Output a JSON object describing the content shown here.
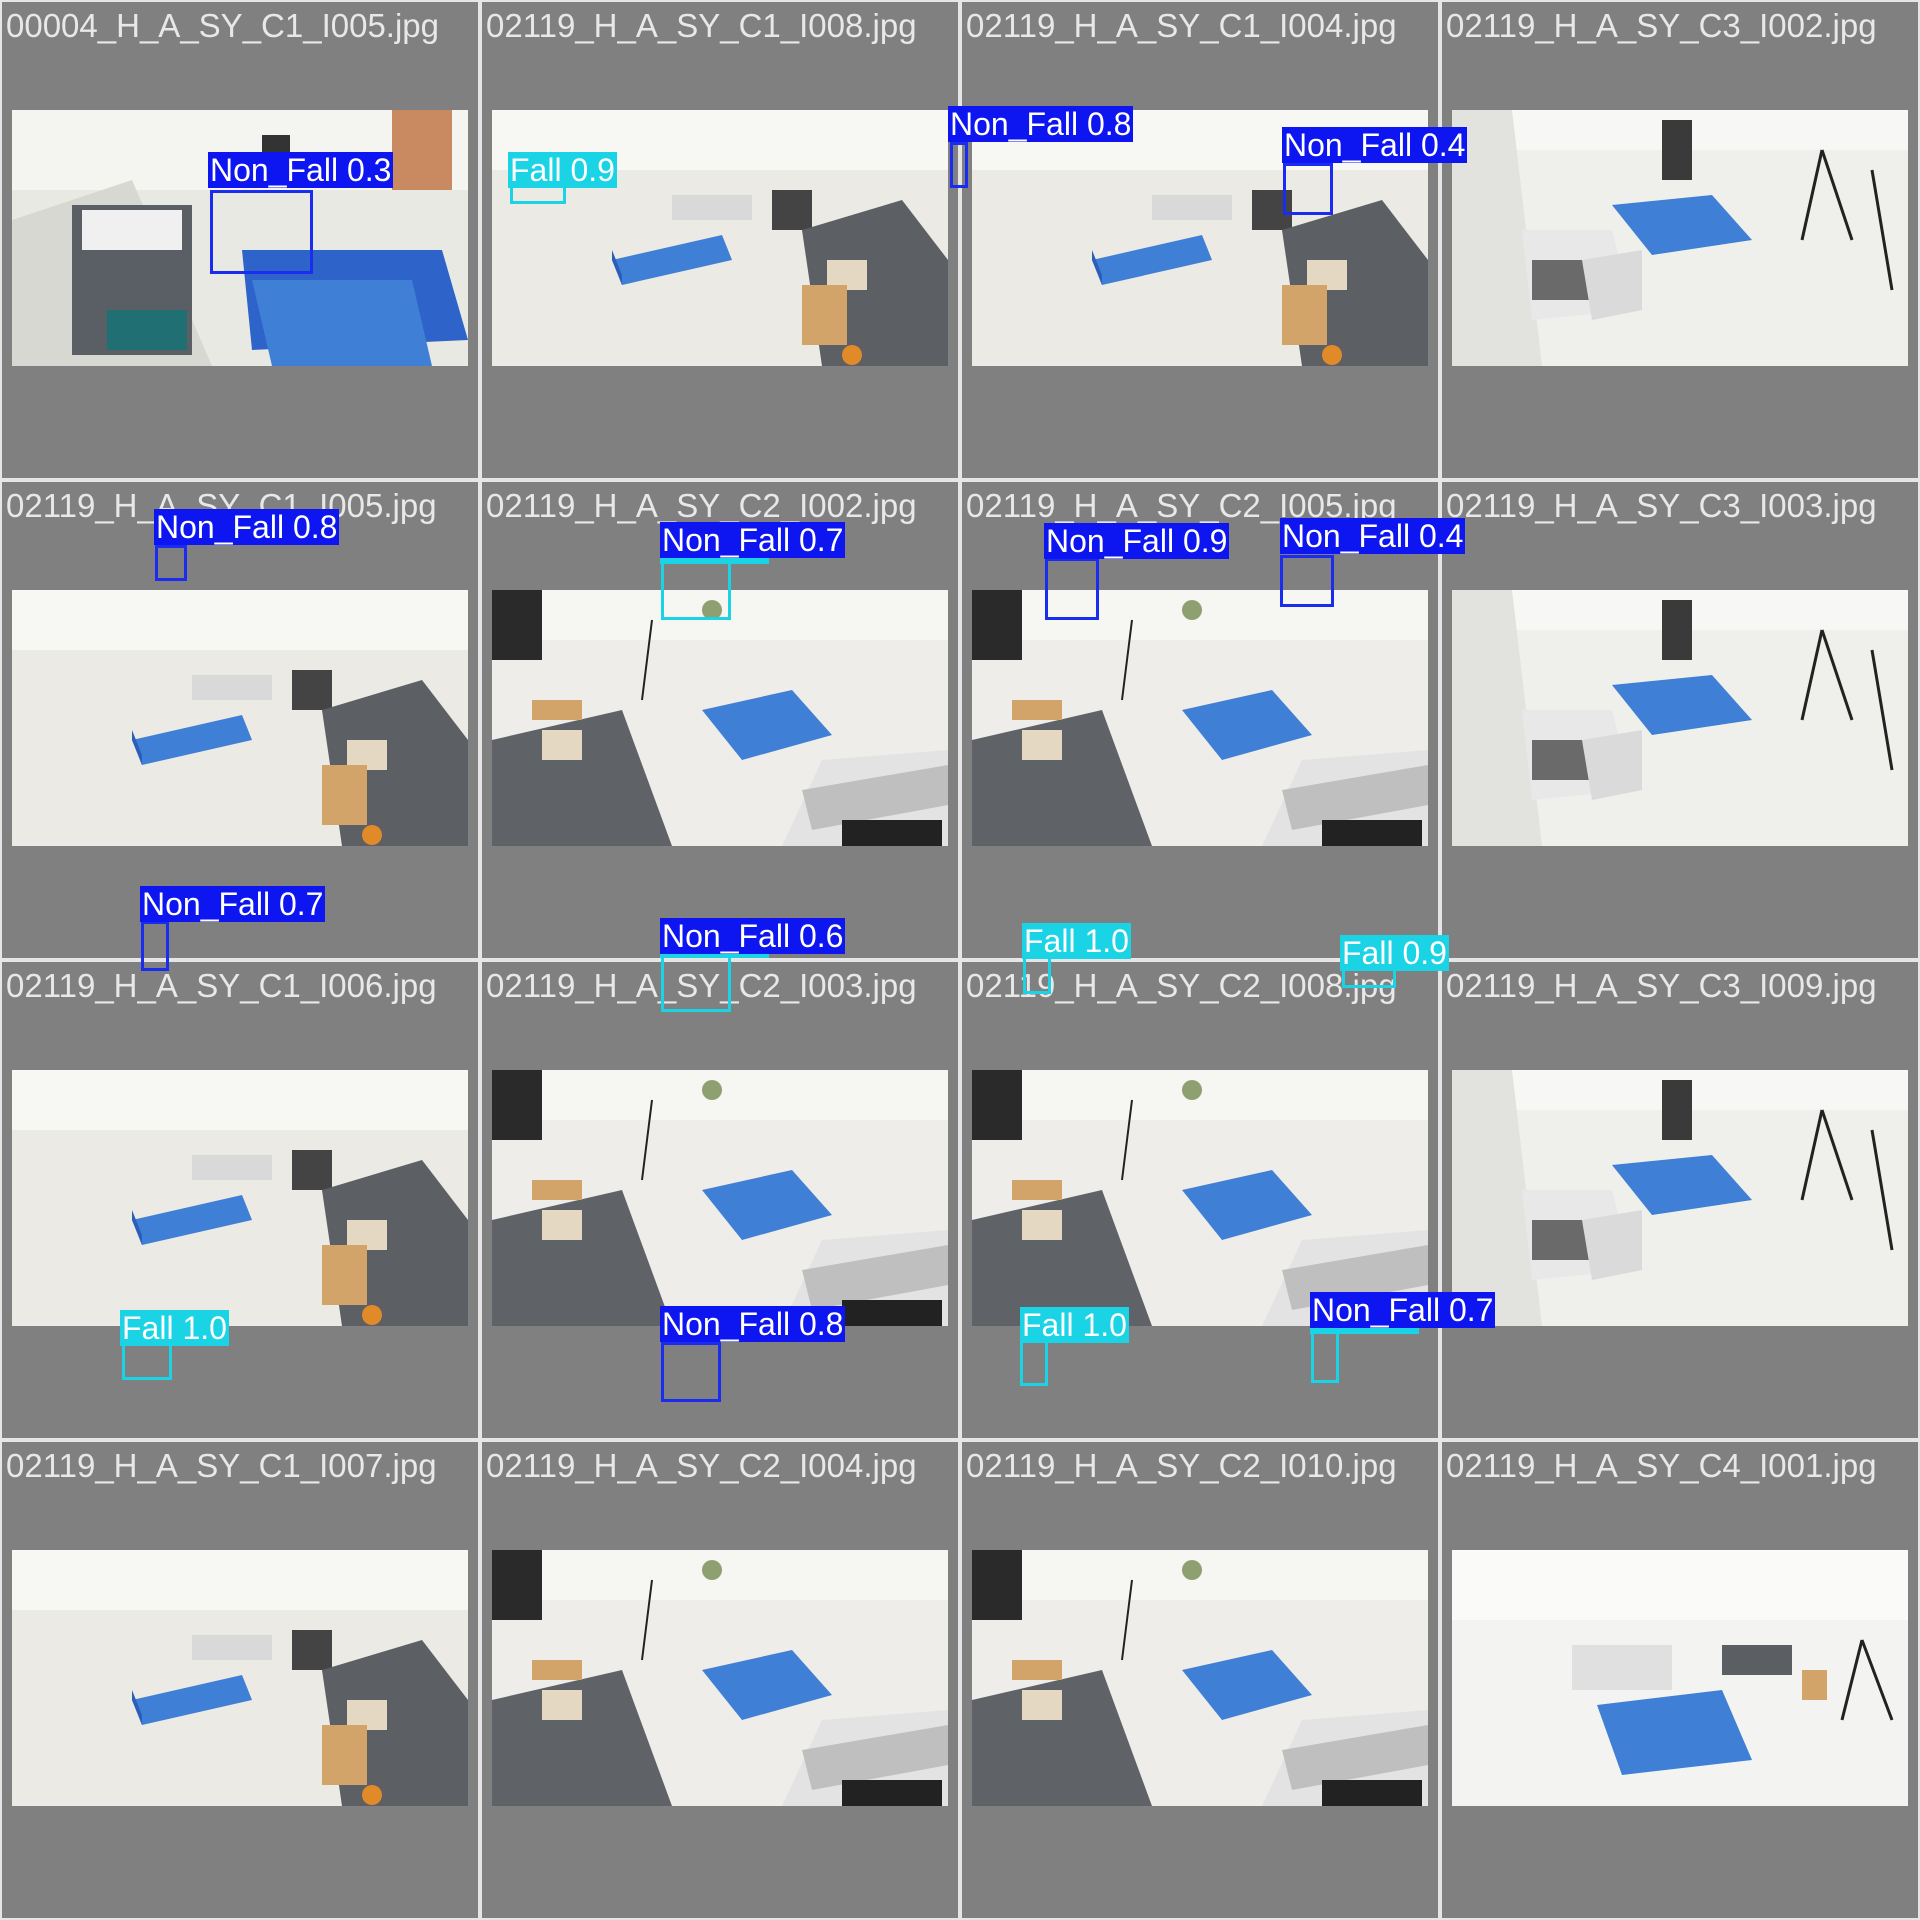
{
  "colors": {
    "tile_bg": "#808080",
    "filename_text": "#e8e8e8",
    "non_fall": "#0d16f0",
    "fall": "#1ad4e6",
    "mat": "#3f7fd6"
  },
  "tiles": [
    {
      "filename": "00004_H_A_SY_C1_I005.jpg",
      "scene": "room_a",
      "detections": [
        {
          "label": "Non_Fall 0.3",
          "class": "nonfall"
        }
      ]
    },
    {
      "filename": "02119_H_A_SY_C1_I008.jpg",
      "scene": "room_b",
      "detections": [
        {
          "label": "Fall 0.9",
          "class": "fall"
        }
      ]
    },
    {
      "filename": "02119_H_A_SY_C1_I004.jpg",
      "scene": "room_b",
      "detections": [
        {
          "label": "Non_Fall 0.8",
          "class": "nonfall"
        }
      ]
    },
    {
      "filename": "02119_H_A_SY_C3_I002.jpg",
      "scene": "room_c",
      "detections": [
        {
          "label": "Non_Fall 0.4",
          "class": "nonfall"
        }
      ]
    },
    {
      "filename": "02119_H_A_SY_C1_I005.jpg",
      "scene": "room_b",
      "detections": [
        {
          "label": "Non_Fall 0.8",
          "class": "nonfall"
        }
      ]
    },
    {
      "filename": "02119_H_A_SY_C2_I002.jpg",
      "scene": "room_d",
      "detections": [
        {
          "label": "Fall 0.3",
          "class": "fall"
        },
        {
          "label": "Non_Fall 0.7",
          "class": "nonfall"
        }
      ]
    },
    {
      "filename": "02119_H_A_SY_C2_I005.jpg",
      "scene": "room_d",
      "detections": [
        {
          "label": "Non_Fall 0.9",
          "class": "nonfall"
        }
      ]
    },
    {
      "filename": "02119_H_A_SY_C3_I003.jpg",
      "scene": "room_c",
      "detections": [
        {
          "label": "Non_Fall 0.4",
          "class": "nonfall"
        }
      ]
    },
    {
      "filename": "02119_H_A_SY_C1_I006.jpg",
      "scene": "room_b",
      "detections": [
        {
          "label": "Non_Fall 0.7",
          "class": "nonfall"
        }
      ]
    },
    {
      "filename": "02119_H_A_SY_C2_I003.jpg",
      "scene": "room_d",
      "detections": [
        {
          "label": "Fall 0.4",
          "class": "fall"
        },
        {
          "label": "Non_Fall 0.6",
          "class": "nonfall"
        }
      ]
    },
    {
      "filename": "02119_H_A_SY_C2_I008.jpg",
      "scene": "room_d",
      "detections": [
        {
          "label": "Fall 1.0",
          "class": "fall"
        }
      ]
    },
    {
      "filename": "02119_H_A_SY_C3_I009.jpg",
      "scene": "room_c",
      "detections": [
        {
          "label": "Fall 0.9",
          "class": "fall"
        }
      ]
    },
    {
      "filename": "02119_H_A_SY_C1_I007.jpg",
      "scene": "room_b",
      "detections": [
        {
          "label": "Fall 1.0",
          "class": "fall"
        }
      ]
    },
    {
      "filename": "02119_H_A_SY_C2_I004.jpg",
      "scene": "room_d",
      "detections": [
        {
          "label": "Non_Fall 0.8",
          "class": "nonfall"
        }
      ]
    },
    {
      "filename": "02119_H_A_SY_C2_I010.jpg",
      "scene": "room_d",
      "detections": [
        {
          "label": "Fall 1.0",
          "class": "fall"
        }
      ]
    },
    {
      "filename": "02119_H_A_SY_C4_I001.jpg",
      "scene": "room_e",
      "detections": [
        {
          "label": "Fall 0.3",
          "class": "fall"
        },
        {
          "label": "Non_Fall 0.7",
          "class": "nonfall"
        }
      ]
    }
  ]
}
